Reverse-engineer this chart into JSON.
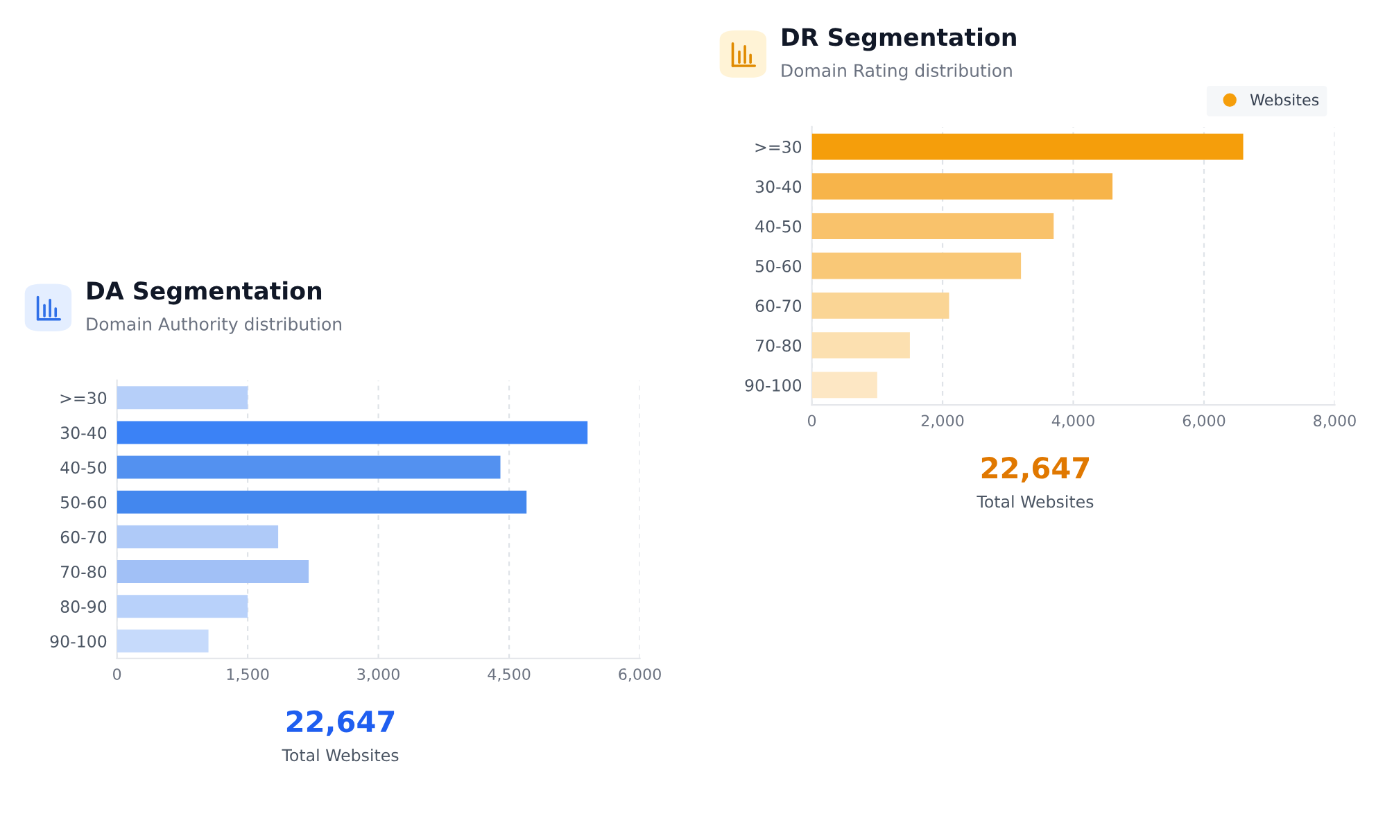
{
  "chart_data": [
    {
      "type": "bar",
      "orientation": "horizontal",
      "title": "DR Segmentation",
      "subtitle": "Domain Rating distribution",
      "categories": [
        ">=30",
        "30-40",
        "40-50",
        "50-60",
        "60-70",
        "70-80",
        "90-100"
      ],
      "series": [
        {
          "name": "Websites",
          "color": "#f59e0b",
          "colors": [
            "#f59e0b",
            "#f7b44a",
            "#f9c26b",
            "#f9c877",
            "#fad595",
            "#fce0b0",
            "#fde7c4"
          ],
          "values": [
            6600,
            4600,
            3700,
            3200,
            2100,
            1500,
            1000
          ]
        }
      ],
      "xlim": [
        0,
        8000
      ],
      "xticks": [
        0,
        {
          "value": 2000,
          "label": "2,000"
        },
        {
          "value": 4000,
          "label": "4,000"
        },
        {
          "value": 6000,
          "label": "6,000"
        },
        {
          "value": 8000,
          "label": "8,000"
        }
      ],
      "grid": "x",
      "legend": "top right",
      "annotations": [
        "22,647",
        "Total Websites"
      ]
    },
    {
      "type": "bar",
      "orientation": "horizontal",
      "title": "DA Segmentation",
      "subtitle": "Domain Authority distribution",
      "categories": [
        ">=30",
        "30-40",
        "40-50",
        "50-60",
        "60-70",
        "70-80",
        "80-90",
        "90-100"
      ],
      "values": [
        1500,
        5400,
        4400,
        4700,
        1850,
        2200,
        1500,
        1050
      ],
      "colors": [
        "#b6cff9",
        "#3b82f6",
        "#5391f0",
        "#4387ee",
        "#afcaf8",
        "#a1c0f6",
        "#b8d1fa",
        "#c6dafb"
      ],
      "xlim": [
        0,
        6000
      ],
      "xticks": [
        0,
        {
          "value": 1500,
          "label": "1,500"
        },
        {
          "value": 3000,
          "label": "3,000"
        },
        {
          "value": 4500,
          "label": "4,500"
        },
        {
          "value": 6000,
          "label": "6,000"
        }
      ],
      "grid": "x",
      "annotations": [
        "22,647",
        "Total Websites"
      ]
    }
  ]
}
